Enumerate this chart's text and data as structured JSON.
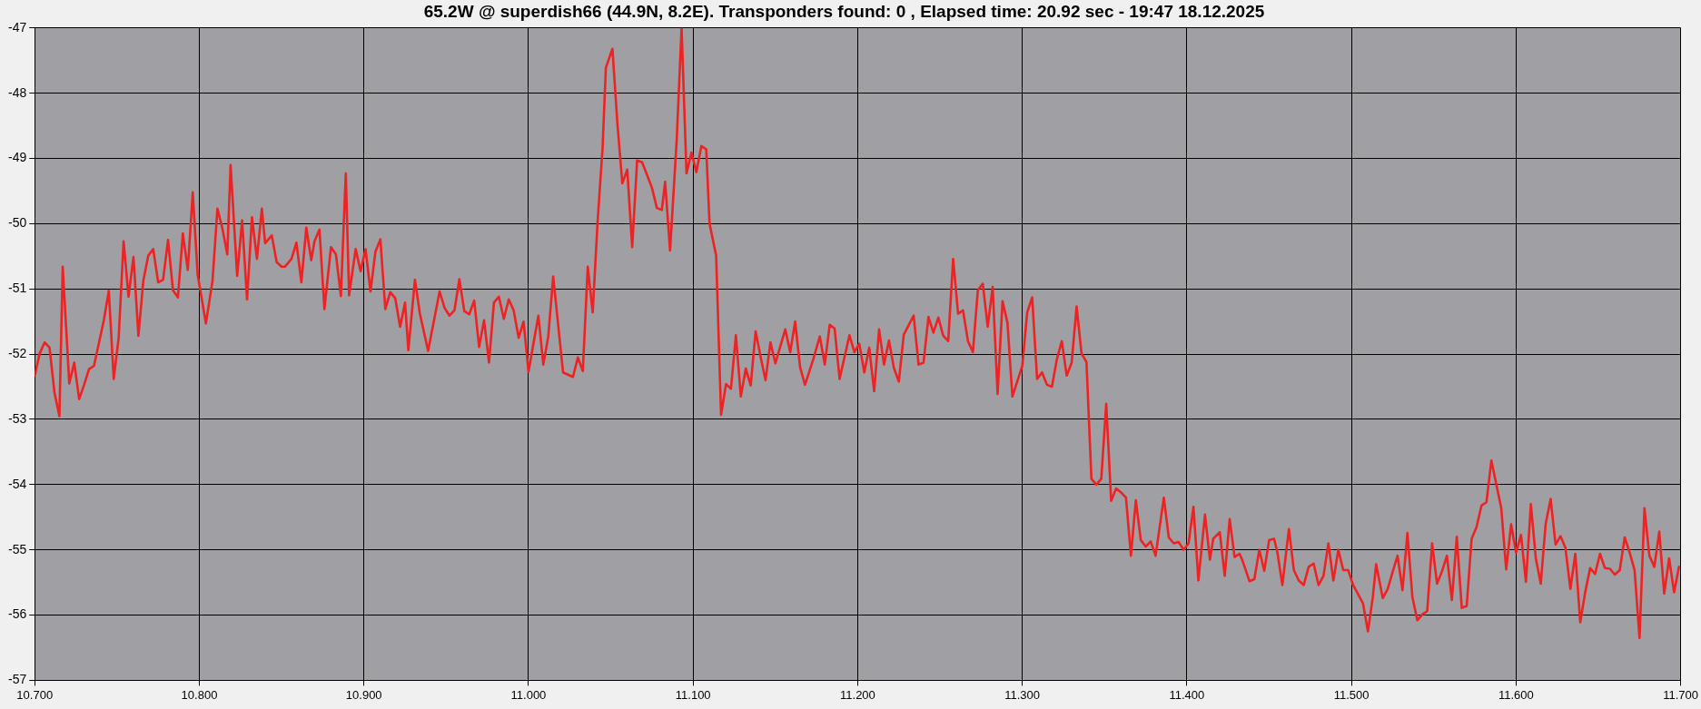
{
  "chart_data": {
    "type": "line",
    "title": "65.2W @ superdish66 (44.9N, 8.2E). Transponders found: 0 , Elapsed time: 20.92 sec - 19:47 18.12.2025",
    "x": [
      10.7,
      10.703,
      10.706,
      10.709,
      10.712,
      10.715,
      10.717,
      10.721,
      10.724,
      10.727,
      10.73,
      10.733,
      10.736,
      10.742,
      10.745,
      10.748,
      10.751,
      10.754,
      10.757,
      10.76,
      10.763,
      10.766,
      10.769,
      10.772,
      10.775,
      10.778,
      10.781,
      10.784,
      10.787,
      10.79,
      10.793,
      10.796,
      10.799,
      10.804,
      10.808,
      10.811,
      10.814,
      10.817,
      10.819,
      10.823,
      10.826,
      10.829,
      10.832,
      10.835,
      10.838,
      10.84,
      10.844,
      10.847,
      10.85,
      10.852,
      10.856,
      10.859,
      10.862,
      10.865,
      10.868,
      10.87,
      10.873,
      10.876,
      10.88,
      10.883,
      10.886,
      10.889,
      10.891,
      10.895,
      10.898,
      10.901,
      10.904,
      10.907,
      10.91,
      10.913,
      10.916,
      10.919,
      10.922,
      10.925,
      10.927,
      10.931,
      10.934,
      10.939,
      10.946,
      10.949,
      10.952,
      10.955,
      10.958,
      10.961,
      10.964,
      10.967,
      10.97,
      10.973,
      10.976,
      10.979,
      10.982,
      10.985,
      10.988,
      10.991,
      10.994,
      10.997,
      11.0,
      11.006,
      11.009,
      11.012,
      11.015,
      11.021,
      11.027,
      11.03,
      11.033,
      11.036,
      11.039,
      11.042,
      11.045,
      11.047,
      11.051,
      11.054,
      11.057,
      11.06,
      11.063,
      11.066,
      11.069,
      11.072,
      11.075,
      11.078,
      11.081,
      11.083,
      11.086,
      11.09,
      11.093,
      11.096,
      11.099,
      11.102,
      11.105,
      11.108,
      11.11,
      11.114,
      11.117,
      11.12,
      11.123,
      11.126,
      11.129,
      11.132,
      11.135,
      11.138,
      11.141,
      11.144,
      11.147,
      11.15,
      11.156,
      11.159,
      11.162,
      11.165,
      11.168,
      11.173,
      11.177,
      11.18,
      11.183,
      11.186,
      11.189,
      11.195,
      11.198,
      11.201,
      11.204,
      11.207,
      11.21,
      11.213,
      11.216,
      11.219,
      11.222,
      11.225,
      11.228,
      11.234,
      11.237,
      11.24,
      11.243,
      11.246,
      11.249,
      11.252,
      11.255,
      11.258,
      11.261,
      11.264,
      11.267,
      11.27,
      11.273,
      11.276,
      11.279,
      11.282,
      11.285,
      11.288,
      11.291,
      11.294,
      11.3,
      11.303,
      11.306,
      11.309,
      11.312,
      11.315,
      11.318,
      11.321,
      11.324,
      11.327,
      11.33,
      11.333,
      11.336,
      11.339,
      11.342,
      11.345,
      11.348,
      11.351,
      11.354,
      11.357,
      11.36,
      11.363,
      11.366,
      11.369,
      11.372,
      11.375,
      11.378,
      11.381,
      11.386,
      11.389,
      11.392,
      11.395,
      11.398,
      11.401,
      11.404,
      11.407,
      11.411,
      11.414,
      11.416,
      11.42,
      11.423,
      11.426,
      11.429,
      11.432,
      11.434,
      11.438,
      11.441,
      11.444,
      11.447,
      11.45,
      11.453,
      11.455,
      11.458,
      11.462,
      11.465,
      11.468,
      11.471,
      11.474,
      11.477,
      11.48,
      11.483,
      11.486,
      11.489,
      11.492,
      11.495,
      11.498,
      11.501,
      11.507,
      11.51,
      11.513,
      11.515,
      11.519,
      11.522,
      11.525,
      11.528,
      11.531,
      11.534,
      11.537,
      11.54,
      11.543,
      11.546,
      11.549,
      11.552,
      11.555,
      11.558,
      11.561,
      11.564,
      11.567,
      11.57,
      11.573,
      11.576,
      11.579,
      11.582,
      11.585,
      11.591,
      11.594,
      11.597,
      11.6,
      11.603,
      11.606,
      11.609,
      11.612,
      11.615,
      11.618,
      11.621,
      11.624,
      11.627,
      11.63,
      11.633,
      11.636,
      11.639,
      11.642,
      11.645,
      11.648,
      11.651,
      11.654,
      11.657,
      11.66,
      11.663,
      11.666,
      11.669,
      11.672,
      11.675,
      11.678,
      11.681,
      11.684,
      11.687,
      11.69,
      11.693,
      11.696,
      11.699
    ],
    "series": [
      {
        "color": "#ee2222",
        "values": [
          -52.33,
          -51.99,
          -51.82,
          -51.9,
          -52.59,
          -52.95,
          -50.66,
          -52.45,
          -52.13,
          -52.69,
          -52.47,
          -52.23,
          -52.18,
          -51.48,
          -51.03,
          -52.38,
          -51.75,
          -50.27,
          -51.12,
          -50.51,
          -51.72,
          -50.87,
          -50.49,
          -50.39,
          -50.9,
          -50.86,
          -50.25,
          -51.02,
          -51.13,
          -50.15,
          -50.71,
          -49.52,
          -50.78,
          -51.53,
          -50.88,
          -49.77,
          -50.07,
          -50.47,
          -49.1,
          -50.8,
          -49.95,
          -51.16,
          -49.9,
          -50.54,
          -49.77,
          -50.3,
          -50.18,
          -50.59,
          -50.66,
          -50.66,
          -50.54,
          -50.29,
          -50.9,
          -50.06,
          -50.56,
          -50.27,
          -50.09,
          -51.31,
          -50.36,
          -50.47,
          -51.11,
          -49.23,
          -51.1,
          -50.39,
          -50.73,
          -50.39,
          -51.04,
          -50.43,
          -50.24,
          -51.31,
          -51.05,
          -51.14,
          -51.58,
          -51.21,
          -51.94,
          -50.86,
          -51.38,
          -51.95,
          -51.04,
          -51.29,
          -51.41,
          -51.33,
          -50.85,
          -51.34,
          -51.39,
          -51.18,
          -51.89,
          -51.48,
          -52.13,
          -51.21,
          -51.12,
          -51.46,
          -51.16,
          -51.33,
          -51.75,
          -51.5,
          -52.27,
          -51.41,
          -52.16,
          -51.73,
          -50.81,
          -52.28,
          -52.35,
          -52.05,
          -52.26,
          -50.66,
          -51.36,
          -49.96,
          -48.84,
          -47.61,
          -47.32,
          -48.46,
          -49.38,
          -49.17,
          -50.36,
          -49.03,
          -49.06,
          -49.25,
          -49.45,
          -49.76,
          -49.79,
          -49.36,
          -50.41,
          -48.74,
          -47.0,
          -49.23,
          -48.91,
          -49.21,
          -48.81,
          -48.86,
          -50.0,
          -50.49,
          -52.93,
          -52.46,
          -52.53,
          -51.71,
          -52.65,
          -52.22,
          -52.48,
          -51.65,
          -52.04,
          -52.4,
          -51.82,
          -52.14,
          -51.62,
          -51.97,
          -51.5,
          -52.2,
          -52.47,
          -52.08,
          -51.73,
          -52.16,
          -51.55,
          -51.61,
          -52.38,
          -51.71,
          -51.97,
          -51.84,
          -52.28,
          -51.9,
          -52.57,
          -51.62,
          -52.16,
          -51.79,
          -52.21,
          -52.42,
          -51.7,
          -51.41,
          -52.16,
          -52.13,
          -51.43,
          -51.67,
          -51.44,
          -51.72,
          -51.8,
          -50.54,
          -51.38,
          -51.33,
          -51.8,
          -51.97,
          -51.02,
          -50.92,
          -51.58,
          -50.97,
          -52.61,
          -51.19,
          -51.52,
          -52.65,
          -52.18,
          -51.36,
          -51.13,
          -52.38,
          -52.28,
          -52.47,
          -52.5,
          -52.08,
          -51.8,
          -52.33,
          -52.13,
          -51.27,
          -51.99,
          -52.12,
          -53.91,
          -54.0,
          -53.91,
          -52.76,
          -54.25,
          -54.06,
          -54.12,
          -54.2,
          -55.09,
          -54.24,
          -54.85,
          -54.95,
          -54.87,
          -55.09,
          -54.2,
          -54.81,
          -54.9,
          -54.88,
          -55.0,
          -54.9,
          -54.34,
          -55.47,
          -54.46,
          -55.15,
          -54.83,
          -54.73,
          -55.4,
          -54.53,
          -55.11,
          -55.06,
          -55.18,
          -55.48,
          -55.45,
          -55.0,
          -55.32,
          -54.85,
          -54.83,
          -55.04,
          -55.54,
          -54.68,
          -55.31,
          -55.47,
          -55.54,
          -55.26,
          -55.21,
          -55.54,
          -55.4,
          -54.9,
          -55.47,
          -55.0,
          -55.31,
          -55.31,
          -55.54,
          -55.82,
          -56.25,
          -55.72,
          -55.22,
          -55.74,
          -55.6,
          -55.34,
          -55.09,
          -55.62,
          -54.74,
          -55.72,
          -56.08,
          -55.99,
          -55.94,
          -54.9,
          -55.52,
          -55.33,
          -55.09,
          -55.77,
          -54.8,
          -55.89,
          -55.86,
          -54.83,
          -54.65,
          -54.32,
          -54.27,
          -53.63,
          -54.36,
          -55.3,
          -54.61,
          -55.04,
          -54.77,
          -55.49,
          -54.3,
          -55.13,
          -55.52,
          -54.6,
          -54.22,
          -54.92,
          -54.79,
          -54.97,
          -55.6,
          -55.06,
          -56.11,
          -55.65,
          -55.28,
          -55.37,
          -55.06,
          -55.28,
          -55.29,
          -55.38,
          -55.31,
          -54.81,
          -55.04,
          -55.31,
          -56.35,
          -54.36,
          -55.09,
          -55.26,
          -54.72,
          -55.67,
          -55.13,
          -55.65,
          -55.26
        ]
      }
    ],
    "xlim": [
      10.7,
      11.7
    ],
    "xticks": [
      {
        "value": 10.7,
        "label": "10.700"
      },
      {
        "value": 10.8,
        "label": "10.800"
      },
      {
        "value": 10.9,
        "label": "10.900"
      },
      {
        "value": 11.0,
        "label": "11.000"
      },
      {
        "value": 11.1,
        "label": "11.100"
      },
      {
        "value": 11.2,
        "label": "11.200"
      },
      {
        "value": 11.3,
        "label": "11.300"
      },
      {
        "value": 11.4,
        "label": "11.400"
      },
      {
        "value": 11.5,
        "label": "11.500"
      },
      {
        "value": 11.6,
        "label": "11.600"
      },
      {
        "value": 11.7,
        "label": "11.700"
      }
    ],
    "ylim": [
      -57,
      -47
    ],
    "yticks": [
      -57,
      -56,
      -55,
      -54,
      -53,
      -52,
      -51,
      -50,
      -49,
      -48,
      -47
    ],
    "grid": true,
    "legend": false,
    "marker": "none",
    "line_style": "solid"
  }
}
